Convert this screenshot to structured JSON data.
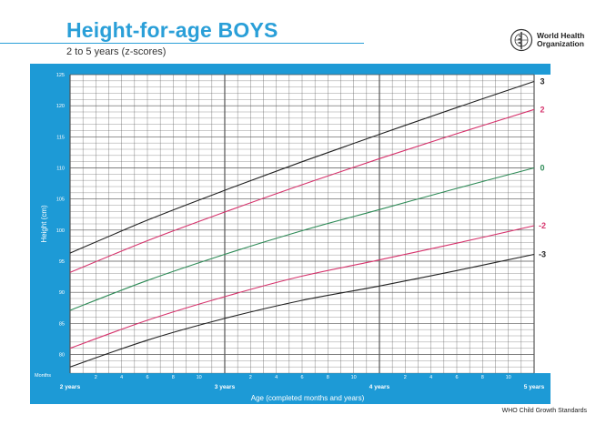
{
  "title": "Height-for-age BOYS",
  "subtitle": "2 to 5 years (z-scores)",
  "organization": {
    "line1": "World Health",
    "line2": "Organization"
  },
  "source_label": "WHO Child Growth Standards",
  "colors": {
    "frame": "#1d9ad6",
    "grid": "#555555",
    "sd3": "#222222",
    "sd2": "#d6336c",
    "median": "#2e8b57"
  },
  "chart_data": {
    "type": "line",
    "title": "Height-for-age BOYS",
    "subtitle": "2 to 5 years (z-scores)",
    "xlabel": "Age (completed months and years)",
    "ylabel": "Height (cm)",
    "x_unit_label": "Months",
    "xlim": [
      24,
      60
    ],
    "ylim": [
      77,
      125
    ],
    "y_ticks": [
      80,
      85,
      90,
      95,
      100,
      105,
      110,
      115,
      120,
      125
    ],
    "x_month_ticks": [
      {
        "month": 26,
        "label": "2"
      },
      {
        "month": 28,
        "label": "4"
      },
      {
        "month": 30,
        "label": "6"
      },
      {
        "month": 32,
        "label": "8"
      },
      {
        "month": 34,
        "label": "10"
      },
      {
        "month": 38,
        "label": "2"
      },
      {
        "month": 40,
        "label": "4"
      },
      {
        "month": 42,
        "label": "6"
      },
      {
        "month": 44,
        "label": "8"
      },
      {
        "month": 46,
        "label": "10"
      },
      {
        "month": 50,
        "label": "2"
      },
      {
        "month": 52,
        "label": "4"
      },
      {
        "month": 54,
        "label": "6"
      },
      {
        "month": 56,
        "label": "8"
      },
      {
        "month": 58,
        "label": "10"
      }
    ],
    "year_labels": [
      {
        "month": 24,
        "label": "2 years"
      },
      {
        "month": 36,
        "label": "3 years"
      },
      {
        "month": 48,
        "label": "4 years"
      },
      {
        "month": 60,
        "label": "5 years"
      }
    ],
    "x": [
      24,
      30,
      36,
      42,
      48,
      54,
      60
    ],
    "series": [
      {
        "name": "3",
        "color_key": "sd3",
        "values": [
          96.3,
          101.6,
          106.4,
          111.0,
          115.4,
          119.7,
          123.9
        ]
      },
      {
        "name": "2",
        "color_key": "sd2",
        "values": [
          93.2,
          98.3,
          102.9,
          107.3,
          111.5,
          115.5,
          119.4
        ]
      },
      {
        "name": "0",
        "color_key": "median",
        "values": [
          87.1,
          91.9,
          96.1,
          99.9,
          103.3,
          106.7,
          110.0
        ]
      },
      {
        "name": "-2",
        "color_key": "sd2",
        "values": [
          81.0,
          85.5,
          89.3,
          92.6,
          95.2,
          97.9,
          100.7
        ]
      },
      {
        "name": "-3",
        "color_key": "sd3",
        "values": [
          78.0,
          82.3,
          85.8,
          88.7,
          91.0,
          93.5,
          96.1
        ]
      }
    ],
    "grid": true,
    "legend": "line-end labels on right"
  }
}
